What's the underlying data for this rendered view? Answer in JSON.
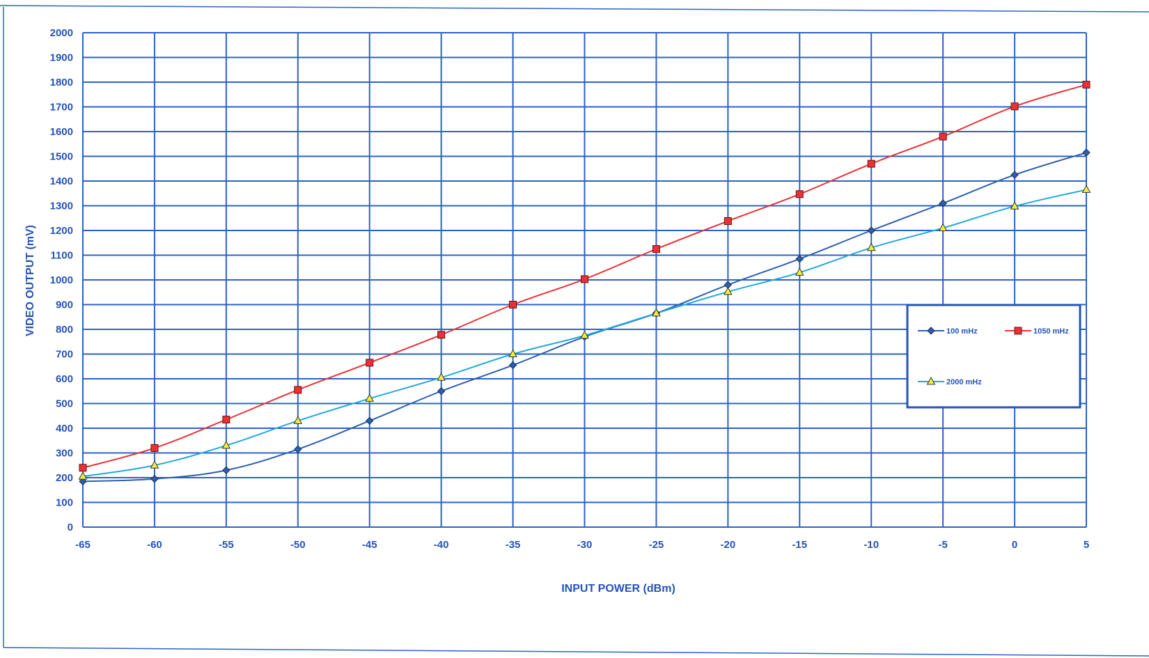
{
  "chart_data": {
    "type": "line",
    "title": "",
    "xlabel": "INPUT POWER (dBm)",
    "ylabel": "VIDEO OUTPUT (mV)",
    "x": [
      -65,
      -60,
      -55,
      -50,
      -45,
      -40,
      -35,
      -30,
      -25,
      -20,
      -15,
      -10,
      -5,
      0,
      5
    ],
    "xlim": [
      -65,
      5
    ],
    "ylim": [
      0,
      2000
    ],
    "xticks": [
      -65,
      -60,
      -55,
      -50,
      -45,
      -40,
      -35,
      -30,
      -25,
      -20,
      -15,
      -10,
      -5,
      0,
      5
    ],
    "yticks": [
      0,
      100,
      200,
      300,
      400,
      500,
      600,
      700,
      800,
      900,
      1000,
      1100,
      1200,
      1300,
      1400,
      1500,
      1600,
      1700,
      1800,
      1900,
      2000
    ],
    "grid": true,
    "legend_position": "right",
    "series": [
      {
        "name": "100 mHz",
        "color": "#2c5fb0",
        "marker": "diamond",
        "values": [
          185,
          195,
          230,
          315,
          430,
          550,
          655,
          770,
          865,
          980,
          1085,
          1200,
          1310,
          1425,
          1515
        ]
      },
      {
        "name": "1050 mHz",
        "color": "#e83236",
        "marker": "square",
        "values": [
          240,
          320,
          435,
          555,
          665,
          778,
          900,
          1003,
          1125,
          1238,
          1347,
          1470,
          1580,
          1702,
          1790
        ]
      },
      {
        "name": "2000 mHz",
        "color": "#22a8dd",
        "marker": "triangle",
        "values": [
          205,
          250,
          330,
          430,
          520,
          605,
          700,
          775,
          865,
          952,
          1030,
          1130,
          1210,
          1298,
          1365
        ]
      }
    ]
  },
  "colors": {
    "grid": "#2a63c7",
    "frame": "#2a63c7",
    "text": "#2453b8",
    "legend_border": "#2453b8"
  }
}
